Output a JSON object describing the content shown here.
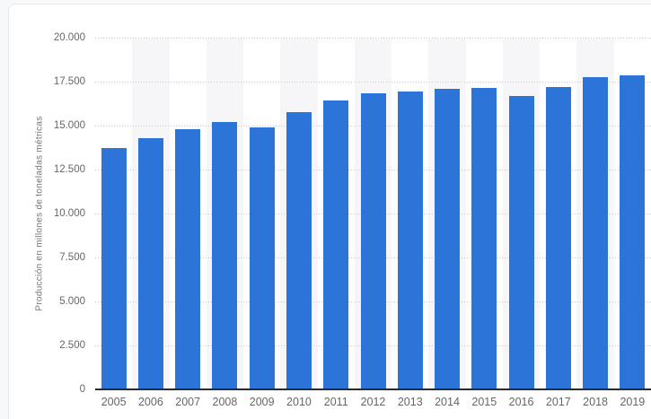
{
  "chart_data": {
    "type": "bar",
    "title": "",
    "xlabel": "",
    "ylabel": "Producción en millones de toneladas métricas",
    "categories": [
      "2005",
      "2006",
      "2007",
      "2008",
      "2009",
      "2010",
      "2011",
      "2012",
      "2013",
      "2014",
      "2015",
      "2016",
      "2017",
      "2018",
      "2019"
    ],
    "values": [
      13700,
      14300,
      14780,
      15200,
      14890,
      15790,
      16410,
      16820,
      16950,
      17080,
      17130,
      16700,
      17180,
      17740,
      17840
    ],
    "ylim": [
      0,
      20000
    ],
    "yticks": [
      0,
      2500,
      5000,
      7500,
      10000,
      12500,
      15000,
      17500,
      20000
    ],
    "ytick_labels": [
      "0",
      "2.500",
      "5.000",
      "7.500",
      "10.000",
      "12.500",
      "15.000",
      "17.500",
      "20.000"
    ],
    "grid": "horizontal-dotted",
    "legend": "none",
    "colors": {
      "bar": "#2d74d9",
      "band": "#f6f6f8",
      "gridline": "#c7c7c7",
      "axis_line": "#2b2b2b",
      "tick_text": "#666666",
      "axis_title_text": "#757575",
      "card_background": "#ffffff",
      "card_border": "#e7e7ea",
      "page_background": "#f7f8f9"
    }
  }
}
